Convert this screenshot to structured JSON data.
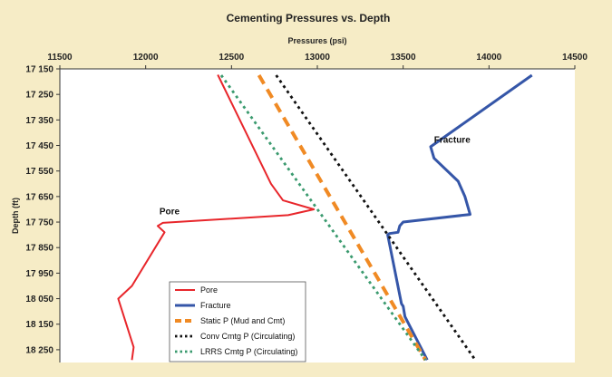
{
  "chart_data": {
    "type": "line",
    "title": "Cementing Pressures vs. Depth",
    "xlabel": "Pressures (psi)",
    "ylabel": "Depth (ft)",
    "xlim": [
      11500,
      14500
    ],
    "ylim": [
      17150,
      18300
    ],
    "x_ticks": [
      11500,
      12000,
      12500,
      13000,
      13500,
      14000,
      14500
    ],
    "x_tick_labels": [
      "11500",
      "12000",
      "12500",
      "13000",
      "13500",
      "14000",
      "14500"
    ],
    "y_ticks": [
      17150,
      17250,
      17350,
      17450,
      17550,
      17650,
      17750,
      17850,
      17950,
      18050,
      18150,
      18250
    ],
    "y_tick_labels": [
      "17 150",
      "17 250",
      "17 350",
      "17 450",
      "17 550",
      "17 650",
      "17 750",
      "17 850",
      "17 950",
      "18 050",
      "18 150",
      "18 250"
    ],
    "x_axis_position": "top",
    "y_inverted": true,
    "grid": false,
    "legend_position": "bottom-center",
    "series": [
      {
        "name": "Pore",
        "color": "#e8262b",
        "style": "solid",
        "points": [
          [
            12420,
            17173
          ],
          [
            12730,
            17600
          ],
          [
            12800,
            17665
          ],
          [
            12980,
            17700
          ],
          [
            12830,
            17723
          ],
          [
            12100,
            17753
          ],
          [
            12070,
            17765
          ],
          [
            12110,
            17790
          ],
          [
            11920,
            18000
          ],
          [
            11840,
            18050
          ],
          [
            11930,
            18240
          ],
          [
            11920,
            18290
          ]
        ]
      },
      {
        "name": "Fracture",
        "color": "#3556a8",
        "style": "solid",
        "points": [
          [
            14250,
            17175
          ],
          [
            13660,
            17455
          ],
          [
            13680,
            17500
          ],
          [
            13820,
            17590
          ],
          [
            13860,
            17650
          ],
          [
            13890,
            17720
          ],
          [
            13500,
            17750
          ],
          [
            13480,
            17765
          ],
          [
            13470,
            17790
          ],
          [
            13420,
            17795
          ],
          [
            13410,
            17800
          ],
          [
            13490,
            18070
          ],
          [
            13500,
            18080
          ],
          [
            13510,
            18120
          ],
          [
            13640,
            18290
          ]
        ]
      },
      {
        "name": "Static P (Mud and Cmt)",
        "color": "#f08a24",
        "style": "dashed",
        "points": [
          [
            12660,
            17175
          ],
          [
            13630,
            18290
          ]
        ]
      },
      {
        "name": "Conv Cmtg P (Circulating)",
        "color": "#111111",
        "style": "dotted",
        "points": [
          [
            12760,
            17175
          ],
          [
            13920,
            18290
          ]
        ]
      },
      {
        "name": "LRRS Cmtg P (Circulating)",
        "color": "#3a9a6e",
        "style": "dotted",
        "points": [
          [
            12440,
            17175
          ],
          [
            13630,
            18290
          ]
        ]
      }
    ],
    "annotations": [
      {
        "text": "Pore",
        "x": 12080,
        "y": 17720
      },
      {
        "text": "Fracture",
        "x": 13680,
        "y": 17440
      }
    ]
  }
}
